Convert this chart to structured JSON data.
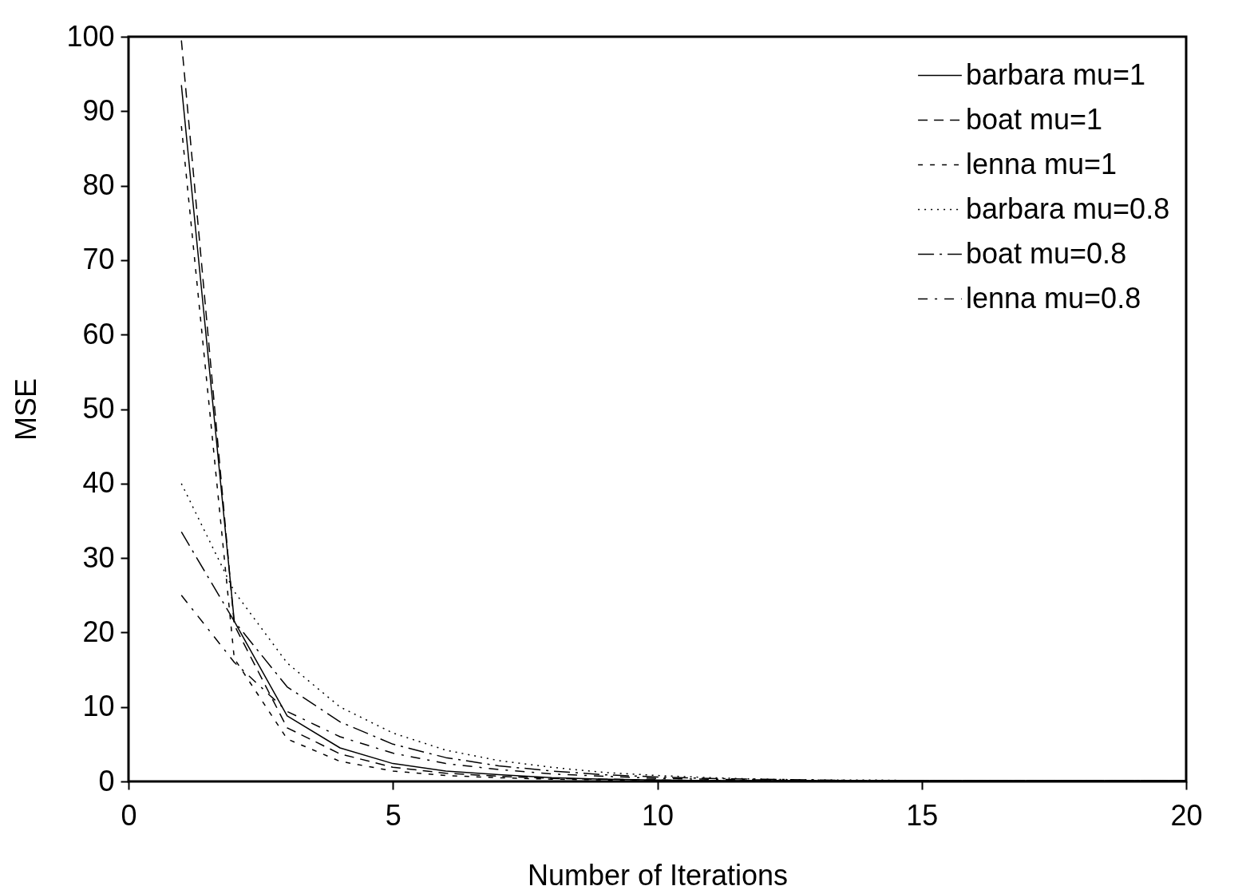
{
  "chart_data": {
    "type": "line",
    "xlabel": "Number of Iterations",
    "ylabel": "MSE",
    "x": [
      1,
      2,
      3,
      4,
      5,
      6,
      7,
      8,
      9,
      10,
      11,
      12,
      13,
      14,
      15,
      16,
      17,
      18,
      19,
      20
    ],
    "xlim": [
      0,
      20
    ],
    "xticks": [
      0,
      5,
      10,
      15,
      20
    ],
    "ylim": [
      0,
      100
    ],
    "yticks": [
      0,
      10,
      20,
      30,
      40,
      50,
      60,
      70,
      80,
      90,
      100
    ],
    "grid": false,
    "legend": "top right",
    "marker": "none",
    "series": [
      {
        "name": "barbara mu=1",
        "color": "#000000",
        "line_style": "solid",
        "values": [
          93.5,
          21.5,
          8.8,
          4.5,
          2.4,
          1.4,
          0.9,
          0.5,
          0.3,
          0.2,
          0.1,
          0.1,
          0.1,
          0.1,
          0.1,
          0.1,
          0.1,
          0.1,
          0.1,
          0.1
        ]
      },
      {
        "name": "boat mu=1",
        "color": "#000000",
        "line_style": "dashed",
        "values": [
          99.5,
          21,
          7.2,
          3.7,
          1.9,
          1.1,
          0.7,
          0.4,
          0.3,
          0.2,
          0.1,
          0.1,
          0.1,
          0.1,
          0.1,
          0.1,
          0.1,
          0.1,
          0.1,
          0.1
        ]
      },
      {
        "name": "lenna mu=1",
        "color": "#000000",
        "line_style": "dashed",
        "values": [
          88,
          16.5,
          5.7,
          2.7,
          1.4,
          0.8,
          0.5,
          0.3,
          0.2,
          0.1,
          0.1,
          0.1,
          0.1,
          0.1,
          0.1,
          0.1,
          0.1,
          0.1,
          0.1,
          0.1
        ]
      },
      {
        "name": "barbara mu=0.8",
        "color": "#000000",
        "line_style": "dotted",
        "values": [
          40,
          25.5,
          15.9,
          10,
          6.5,
          4.2,
          2.8,
          1.9,
          1.2,
          0.8,
          0.5,
          0.3,
          0.2,
          0.2,
          0.1,
          0.1,
          0.1,
          0.1,
          0.1,
          0.1
        ]
      },
      {
        "name": "boat mu=0.8",
        "color": "#000000",
        "line_style": "dashed",
        "values": [
          33.5,
          21.5,
          12.7,
          8,
          5,
          3.2,
          2.1,
          1.4,
          0.9,
          0.6,
          0.4,
          0.3,
          0.2,
          0.1,
          0.1,
          0.1,
          0.1,
          0.1,
          0.1,
          0.1
        ]
      },
      {
        "name": "lenna mu=0.8",
        "color": "#000000",
        "line_style": "dashed",
        "values": [
          25,
          16,
          9.4,
          6,
          3.8,
          2.4,
          1.6,
          1.0,
          0.7,
          0.4,
          0.3,
          0.2,
          0.1,
          0.1,
          0.1,
          0.1,
          0.1,
          0.1,
          0.1,
          0.1
        ]
      }
    ]
  }
}
